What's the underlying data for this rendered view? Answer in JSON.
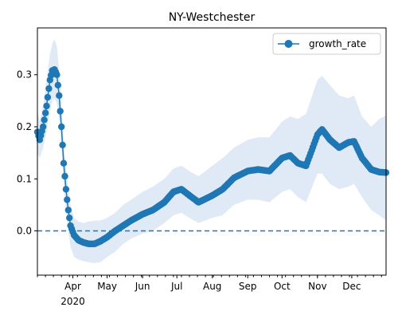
{
  "chart_data": {
    "type": "line",
    "title": "NY-Westchester",
    "xlabel": "",
    "ylabel": "",
    "x_range": [
      "2020-03-01",
      "2020-12-31"
    ],
    "ylim": [
      -0.085,
      0.39
    ],
    "y_ticks": [
      0.0,
      0.1,
      0.2,
      0.3
    ],
    "y_tick_labels": [
      "0.0",
      "0.1",
      "0.2",
      "0.3"
    ],
    "x_ticks": [
      {
        "date": "2020-04-01",
        "label": "Apr"
      },
      {
        "date": "2020-05-01",
        "label": "May"
      },
      {
        "date": "2020-06-01",
        "label": "Jun"
      },
      {
        "date": "2020-07-01",
        "label": "Jul"
      },
      {
        "date": "2020-08-01",
        "label": "Aug"
      },
      {
        "date": "2020-09-01",
        "label": "Sep"
      },
      {
        "date": "2020-10-01",
        "label": "Oct"
      },
      {
        "date": "2020-11-01",
        "label": "Nov"
      },
      {
        "date": "2020-12-01",
        "label": "Dec"
      }
    ],
    "x_year_label": "2020",
    "grid": false,
    "legend_position": "top-right",
    "reference_line": {
      "y": 0.0,
      "style": "dashed",
      "color": "#1f77b4"
    },
    "series": [
      {
        "name": "growth_rate",
        "color": "#1f77b4",
        "band_color": "#dfeaf6",
        "marker": "circle",
        "points": [
          {
            "date": "2020-03-01",
            "y": 0.19,
            "lo": 0.15,
            "hi": 0.23
          },
          {
            "date": "2020-03-03",
            "y": 0.175,
            "lo": 0.14,
            "hi": 0.21
          },
          {
            "date": "2020-03-06",
            "y": 0.2,
            "lo": 0.16,
            "hi": 0.24
          },
          {
            "date": "2020-03-09",
            "y": 0.24,
            "lo": 0.19,
            "hi": 0.29
          },
          {
            "date": "2020-03-12",
            "y": 0.29,
            "lo": 0.23,
            "hi": 0.34
          },
          {
            "date": "2020-03-14",
            "y": 0.308,
            "lo": 0.25,
            "hi": 0.36
          },
          {
            "date": "2020-03-16",
            "y": 0.31,
            "lo": 0.255,
            "hi": 0.368
          },
          {
            "date": "2020-03-18",
            "y": 0.3,
            "lo": 0.245,
            "hi": 0.355
          },
          {
            "date": "2020-03-20",
            "y": 0.26,
            "lo": 0.21,
            "hi": 0.31
          },
          {
            "date": "2020-03-22",
            "y": 0.2,
            "lo": 0.16,
            "hi": 0.25
          },
          {
            "date": "2020-03-24",
            "y": 0.13,
            "lo": 0.09,
            "hi": 0.17
          },
          {
            "date": "2020-03-26",
            "y": 0.08,
            "lo": 0.04,
            "hi": 0.12
          },
          {
            "date": "2020-03-28",
            "y": 0.04,
            "lo": 0.0,
            "hi": 0.08
          },
          {
            "date": "2020-03-30",
            "y": 0.01,
            "lo": -0.03,
            "hi": 0.05
          },
          {
            "date": "2020-04-02",
            "y": -0.008,
            "lo": -0.05,
            "hi": 0.025
          },
          {
            "date": "2020-04-06",
            "y": -0.018,
            "lo": -0.055,
            "hi": 0.018
          },
          {
            "date": "2020-04-10",
            "y": -0.022,
            "lo": -0.058,
            "hi": 0.015
          },
          {
            "date": "2020-04-15",
            "y": -0.025,
            "lo": -0.06,
            "hi": 0.018
          },
          {
            "date": "2020-04-20",
            "y": -0.025,
            "lo": -0.062,
            "hi": 0.02
          },
          {
            "date": "2020-04-25",
            "y": -0.02,
            "lo": -0.06,
            "hi": 0.02
          },
          {
            "date": "2020-05-01",
            "y": -0.012,
            "lo": -0.05,
            "hi": 0.025
          },
          {
            "date": "2020-05-08",
            "y": 0.0,
            "lo": -0.04,
            "hi": 0.035
          },
          {
            "date": "2020-05-15",
            "y": 0.01,
            "lo": -0.025,
            "hi": 0.05
          },
          {
            "date": "2020-05-22",
            "y": 0.02,
            "lo": -0.015,
            "hi": 0.06
          },
          {
            "date": "2020-06-01",
            "y": 0.032,
            "lo": -0.005,
            "hi": 0.075
          },
          {
            "date": "2020-06-10",
            "y": 0.04,
            "lo": 0.0,
            "hi": 0.085
          },
          {
            "date": "2020-06-20",
            "y": 0.055,
            "lo": 0.015,
            "hi": 0.1
          },
          {
            "date": "2020-06-28",
            "y": 0.075,
            "lo": 0.03,
            "hi": 0.12
          },
          {
            "date": "2020-07-05",
            "y": 0.08,
            "lo": 0.035,
            "hi": 0.125
          },
          {
            "date": "2020-07-12",
            "y": 0.068,
            "lo": 0.025,
            "hi": 0.115
          },
          {
            "date": "2020-07-20",
            "y": 0.055,
            "lo": 0.015,
            "hi": 0.105
          },
          {
            "date": "2020-08-01",
            "y": 0.068,
            "lo": 0.025,
            "hi": 0.125
          },
          {
            "date": "2020-08-10",
            "y": 0.08,
            "lo": 0.03,
            "hi": 0.14
          },
          {
            "date": "2020-08-20",
            "y": 0.102,
            "lo": 0.05,
            "hi": 0.16
          },
          {
            "date": "2020-09-01",
            "y": 0.115,
            "lo": 0.06,
            "hi": 0.175
          },
          {
            "date": "2020-09-10",
            "y": 0.118,
            "lo": 0.06,
            "hi": 0.18
          },
          {
            "date": "2020-09-20",
            "y": 0.115,
            "lo": 0.055,
            "hi": 0.18
          },
          {
            "date": "2020-10-01",
            "y": 0.14,
            "lo": 0.075,
            "hi": 0.21
          },
          {
            "date": "2020-10-08",
            "y": 0.145,
            "lo": 0.08,
            "hi": 0.22
          },
          {
            "date": "2020-10-15",
            "y": 0.13,
            "lo": 0.065,
            "hi": 0.215
          },
          {
            "date": "2020-10-22",
            "y": 0.125,
            "lo": 0.055,
            "hi": 0.225
          },
          {
            "date": "2020-11-01",
            "y": 0.185,
            "lo": 0.11,
            "hi": 0.29
          },
          {
            "date": "2020-11-05",
            "y": 0.195,
            "lo": 0.11,
            "hi": 0.298
          },
          {
            "date": "2020-11-12",
            "y": 0.175,
            "lo": 0.09,
            "hi": 0.28
          },
          {
            "date": "2020-11-20",
            "y": 0.16,
            "lo": 0.08,
            "hi": 0.26
          },
          {
            "date": "2020-11-28",
            "y": 0.17,
            "lo": 0.085,
            "hi": 0.255
          },
          {
            "date": "2020-12-03",
            "y": 0.172,
            "lo": 0.09,
            "hi": 0.26
          },
          {
            "date": "2020-12-10",
            "y": 0.14,
            "lo": 0.065,
            "hi": 0.22
          },
          {
            "date": "2020-12-18",
            "y": 0.118,
            "lo": 0.04,
            "hi": 0.2
          },
          {
            "date": "2020-12-25",
            "y": 0.113,
            "lo": 0.03,
            "hi": 0.215
          },
          {
            "date": "2020-12-31",
            "y": 0.112,
            "lo": 0.02,
            "hi": 0.222
          }
        ]
      }
    ]
  }
}
